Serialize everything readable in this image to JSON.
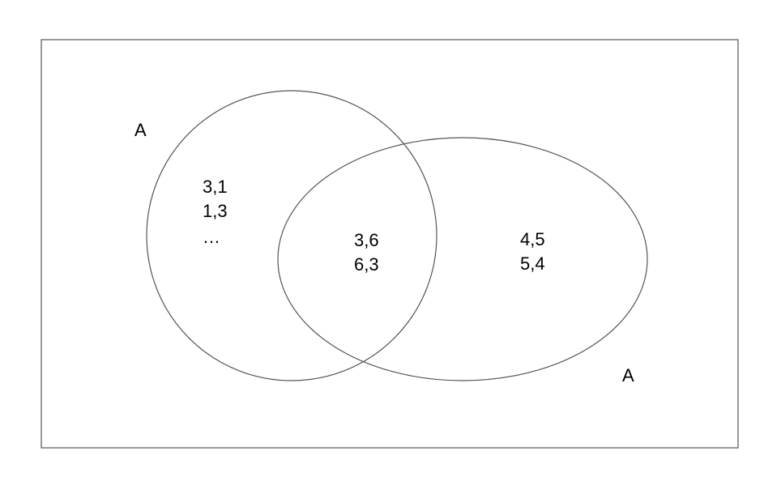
{
  "diagram": {
    "type": "venn",
    "sets": [
      {
        "label": "A",
        "elements_only": [
          "3,1",
          "1,3",
          "…"
        ]
      },
      {
        "label": "A",
        "elements_only": [
          "4,5",
          "5,4"
        ]
      }
    ],
    "intersection": [
      "3,6",
      "6,3"
    ],
    "colors": {
      "outline": "#555555",
      "text": "#000000",
      "background": "#ffffff"
    }
  }
}
